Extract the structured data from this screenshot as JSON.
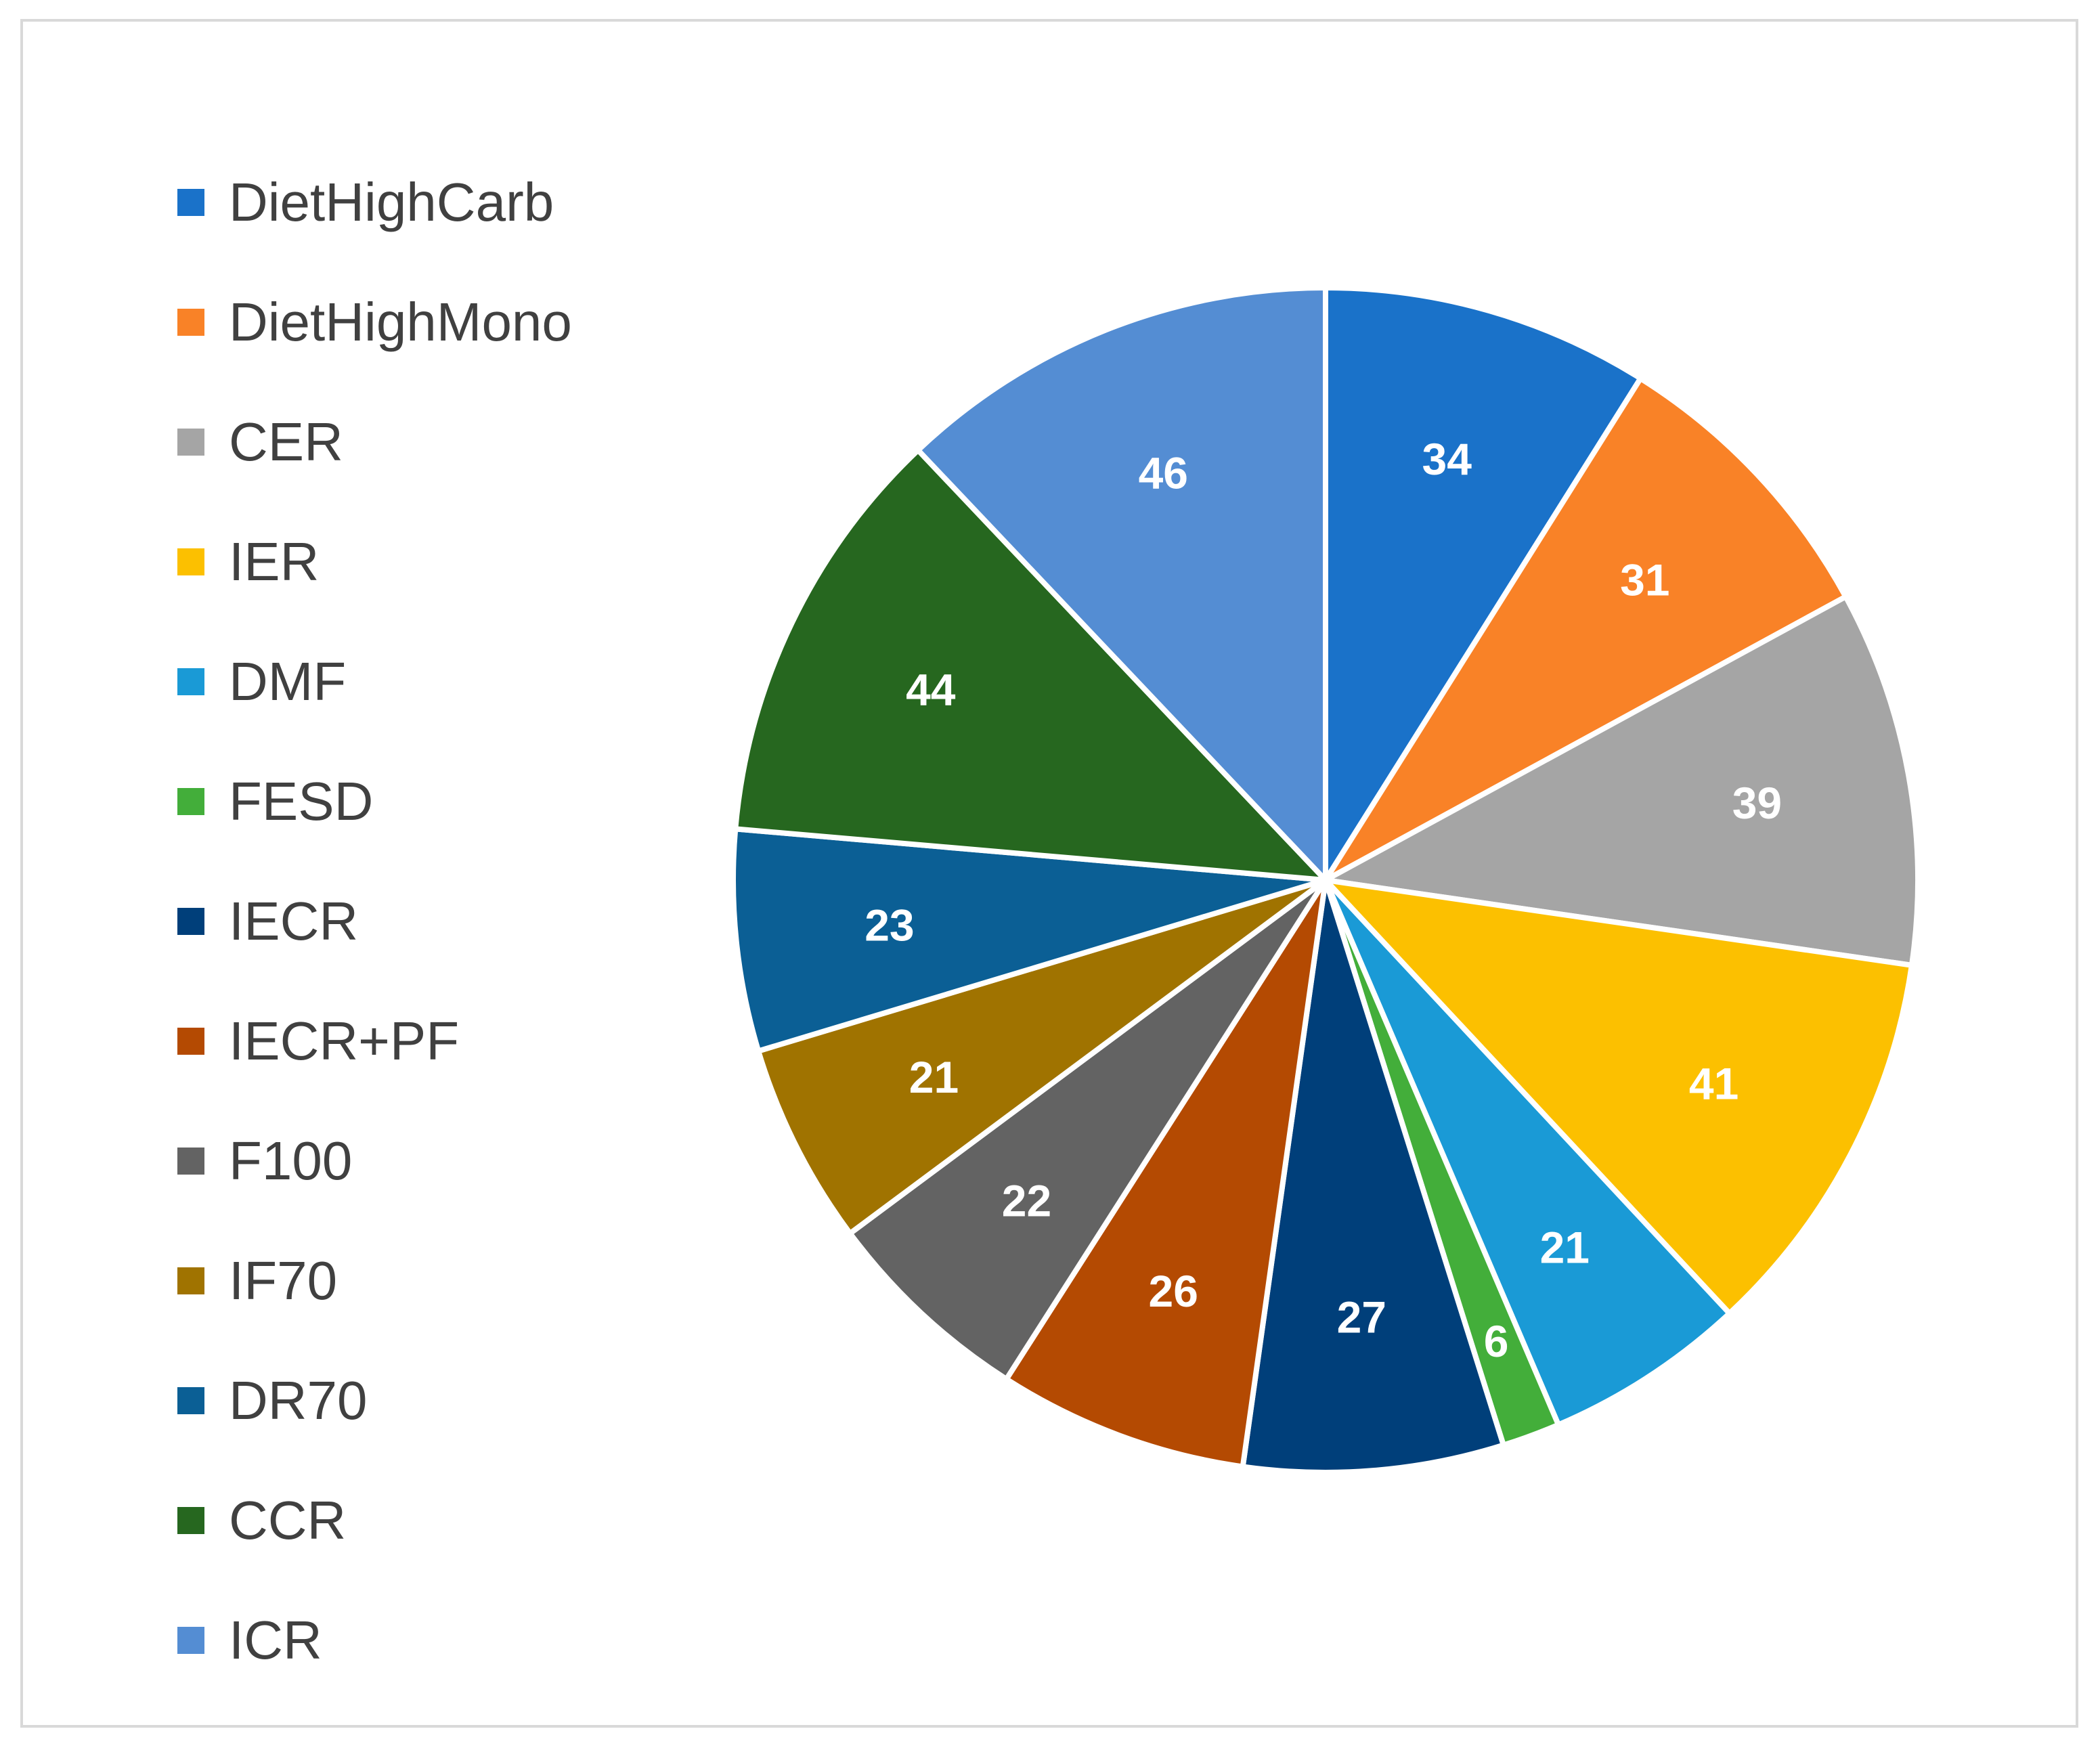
{
  "chart_data": {
    "type": "pie",
    "title": "",
    "legend_position": "left",
    "start_angle_deg": 0,
    "direction": "clockwise",
    "categories": [
      "DietHighCarb",
      "DietHighMono",
      "CER",
      "IER",
      "DMF",
      "FESD",
      "IECR",
      "IECR+PF",
      "F100",
      "IF70",
      "DR70",
      "CCR",
      "ICR"
    ],
    "values": [
      34,
      31,
      39,
      41,
      21,
      6,
      27,
      26,
      22,
      21,
      23,
      44,
      46
    ],
    "data_labels": [
      "34",
      "31",
      "39",
      "41",
      "21",
      "6",
      "27",
      "26",
      "22",
      "21",
      "23",
      "44",
      "46"
    ],
    "colors": [
      "#1a72c9",
      "#f98227",
      "#a5a5a5",
      "#fcc000",
      "#1a9ad6",
      "#43ae3a",
      "#003f7a",
      "#b44a02",
      "#636363",
      "#a07300",
      "#0b5f95",
      "#26671f",
      "#548dd3"
    ]
  }
}
